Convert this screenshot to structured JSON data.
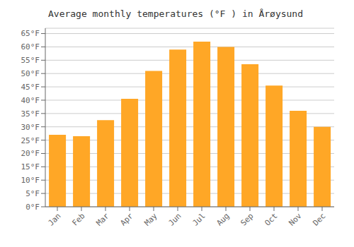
{
  "chart_data": {
    "type": "bar",
    "title": "Average monthly temperatures (°F ) in Årøysund",
    "categories": [
      "Jan",
      "Feb",
      "Mar",
      "Apr",
      "May",
      "Jun",
      "Jul",
      "Aug",
      "Sep",
      "Oct",
      "Nov",
      "Dec"
    ],
    "values": [
      27,
      26.5,
      32.5,
      40.5,
      51,
      59,
      62,
      60,
      53.5,
      45.5,
      36,
      30
    ],
    "color": "#FFA726",
    "ylim": [
      0,
      67
    ],
    "yticks": [
      {
        "value": 0,
        "label": "0°F"
      },
      {
        "value": 5,
        "label": "5°F"
      },
      {
        "value": 10,
        "label": "10°F"
      },
      {
        "value": 15,
        "label": "15°F"
      },
      {
        "value": 20,
        "label": "20°F"
      },
      {
        "value": 25,
        "label": "25°F"
      },
      {
        "value": 30,
        "label": "30°F"
      },
      {
        "value": 35,
        "label": "35°F"
      },
      {
        "value": 40,
        "label": "40°F"
      },
      {
        "value": 45,
        "label": "45°F"
      },
      {
        "value": 50,
        "label": "50°F"
      },
      {
        "value": 55,
        "label": "55°F"
      },
      {
        "value": 60,
        "label": "60°F"
      },
      {
        "value": 65,
        "label": "65°F"
      }
    ],
    "grid": true
  }
}
